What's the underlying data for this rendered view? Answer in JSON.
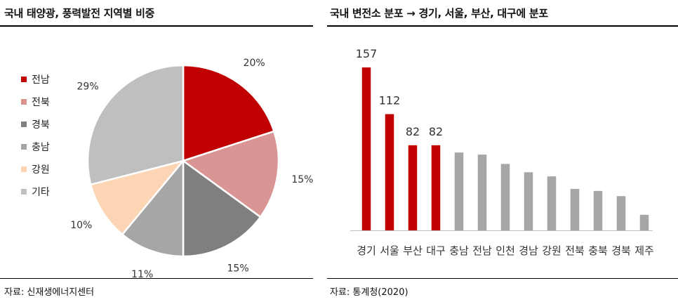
{
  "left": {
    "title": "국내 태양광, 풍력발전 지역별 비중",
    "source": "자료: 신재생에너지센터"
  },
  "right": {
    "title": "국내 변전소 분포 → 경기, 서울, 부산, 대구에 분포",
    "source": "자료: 통계청(2020)"
  },
  "chart_data": [
    {
      "type": "pie",
      "title": "국내 태양광, 풍력발전 지역별 비중",
      "legend_position": "left",
      "slices": [
        {
          "label": "전남",
          "value": 20,
          "display": "20%",
          "color": "#c00000"
        },
        {
          "label": "전북",
          "value": 15,
          "display": "15%",
          "color": "#d99594"
        },
        {
          "label": "경북",
          "value": 15,
          "display": "15%",
          "color": "#7f7f7f"
        },
        {
          "label": "충남",
          "value": 11,
          "display": "11%",
          "color": "#a6a6a6"
        },
        {
          "label": "강원",
          "value": 10,
          "display": "10%",
          "color": "#fcd5b4"
        },
        {
          "label": "기타",
          "value": 29,
          "display": "29%",
          "color": "#bfbfbf"
        }
      ]
    },
    {
      "type": "bar",
      "title": "국내 변전소 분포 → 경기, 서울, 부산, 대구에 분포",
      "categories": [
        "경기",
        "서울",
        "부산",
        "대구",
        "충남",
        "전남",
        "인천",
        "경남",
        "강원",
        "전북",
        "충북",
        "경북",
        "제주"
      ],
      "values": [
        157,
        112,
        82,
        82,
        75,
        73,
        64,
        56,
        52,
        40,
        38,
        33,
        15
      ],
      "data_labels": [
        "157",
        "112",
        "82",
        "82",
        "",
        "",
        "",
        "",
        "",
        "",
        "",
        "",
        ""
      ],
      "colors": [
        "#c00000",
        "#c00000",
        "#c00000",
        "#c00000",
        "#a6a6a6",
        "#a6a6a6",
        "#a6a6a6",
        "#a6a6a6",
        "#a6a6a6",
        "#a6a6a6",
        "#a6a6a6",
        "#a6a6a6",
        "#a6a6a6"
      ],
      "ylim": [
        0,
        157
      ],
      "grid": false
    }
  ]
}
